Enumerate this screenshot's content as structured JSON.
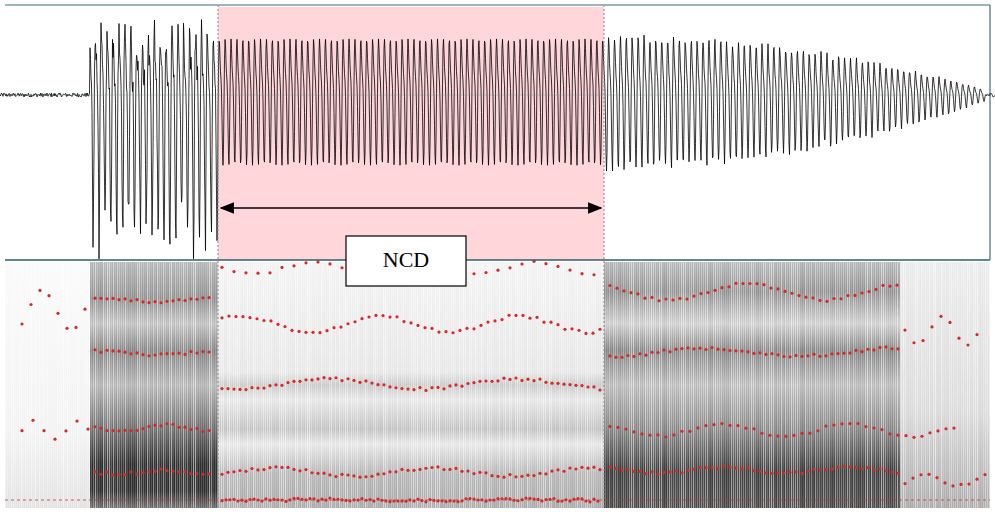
{
  "chart_data": {
    "type": "spectrogram",
    "annotations": [
      {
        "text": "NCD"
      }
    ]
  }
}
